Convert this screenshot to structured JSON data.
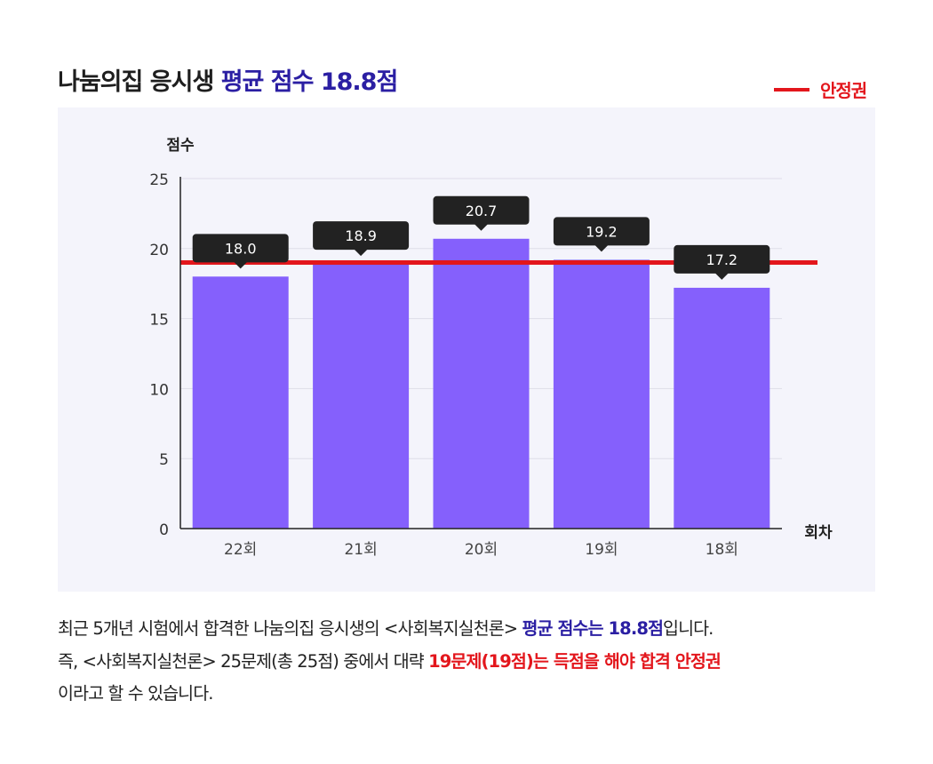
{
  "title": {
    "main": "나눔의집 응시생",
    "highlight": "평균 점수 18.8점"
  },
  "legend": {
    "label": "안정권",
    "color": "#e3161c"
  },
  "chart_data": {
    "type": "bar",
    "categories": [
      "22회",
      "21회",
      "20회",
      "19회",
      "18회"
    ],
    "values": [
      18.0,
      18.9,
      20.7,
      19.2,
      17.2
    ],
    "data_labels": [
      "18.0",
      "18.9",
      "20.7",
      "19.2",
      "17.2"
    ],
    "ylabel": "점수",
    "xlabel": "회차",
    "ylim": [
      0,
      25
    ],
    "yticks": [
      0,
      5,
      10,
      15,
      20,
      25
    ],
    "ytick_labels": [
      "0",
      "5",
      "10",
      "15",
      "20",
      "25"
    ],
    "grid": true,
    "reference_line": {
      "name": "안정권",
      "value": 19
    },
    "colors": {
      "bar": "#8560fc",
      "reference_line": "#e3161c",
      "label_box": "#222222",
      "background": "#f4f4fb"
    }
  },
  "description": {
    "line1": {
      "a": "최근 5개년 시험에서 합격한 나눔의집 응시생의 <사회복지실천론> ",
      "b": "평균 점수는 18.8점",
      "c": "입니다."
    },
    "line2": {
      "a": "즉, <사회복지실천론> 25문제(총 25점) 중에서 대략 ",
      "b": "19문제(19점)는 득점을 해야 합격 안정권"
    },
    "line3": "이라고 할 수 있습니다."
  }
}
